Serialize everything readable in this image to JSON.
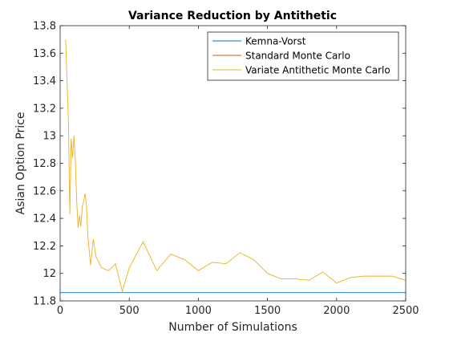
{
  "chart_data": {
    "type": "line",
    "title": "Variance Reduction by Antithetic",
    "xlabel": "Number of Simulations",
    "ylabel": "Asian Option Price",
    "xlim": [
      0,
      2500
    ],
    "ylim": [
      11.8,
      13.8
    ],
    "xticks": [
      0,
      500,
      1000,
      1500,
      2000,
      2500
    ],
    "yticks": [
      11.8,
      12,
      12.2,
      12.4,
      12.6,
      12.8,
      13,
      13.2,
      13.4,
      13.6,
      13.8
    ],
    "xtick_labels": [
      "0",
      "500",
      "1000",
      "1500",
      "2000",
      "2500"
    ],
    "ytick_labels": [
      "11.8",
      "12",
      "12.2",
      "12.4",
      "12.6",
      "12.8",
      "13",
      "13.2",
      "13.4",
      "13.6",
      "13.8"
    ],
    "grid": false,
    "legend_position": "top-right",
    "series": [
      {
        "name": "Kemna-Vorst",
        "color": "#0072BD",
        "x": [
          0,
          2500
        ],
        "y": [
          11.86,
          11.86
        ]
      },
      {
        "name": "Standard Monte Carlo",
        "color": "#D95319",
        "x": [],
        "y": []
      },
      {
        "name": "Variate Antithetic Monte Carlo",
        "color": "#EDB120",
        "x": [
          40,
          60,
          70,
          80,
          90,
          100,
          110,
          120,
          130,
          140,
          150,
          160,
          170,
          180,
          190,
          200,
          220,
          240,
          250,
          260,
          300,
          350,
          400,
          450,
          500,
          600,
          700,
          800,
          900,
          1000,
          1100,
          1200,
          1300,
          1400,
          1500,
          1600,
          1700,
          1800,
          1900,
          2000,
          2100,
          2200,
          2300,
          2400,
          2500
        ],
        "y": [
          13.7,
          13.1,
          12.43,
          12.98,
          12.84,
          13.0,
          12.82,
          12.52,
          12.33,
          12.42,
          12.34,
          12.48,
          12.52,
          12.58,
          12.5,
          12.28,
          12.06,
          12.25,
          12.18,
          12.12,
          12.04,
          12.02,
          12.07,
          11.87,
          12.04,
          12.23,
          12.02,
          12.14,
          12.1,
          12.02,
          12.08,
          12.07,
          12.15,
          12.1,
          12.0,
          11.96,
          11.96,
          11.95,
          12.01,
          11.93,
          11.97,
          11.98,
          11.98,
          11.98,
          11.95
        ]
      }
    ]
  }
}
